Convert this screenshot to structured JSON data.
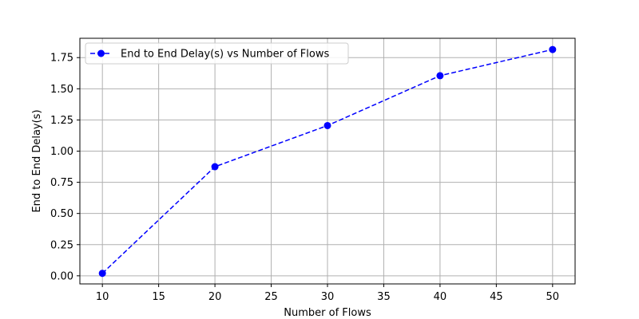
{
  "chart_data": {
    "type": "line",
    "title": "",
    "xlabel": "Number of Flows",
    "ylabel": "End to End Delay(s)",
    "xlim": [
      8,
      52
    ],
    "ylim": [
      -0.065,
      1.905
    ],
    "xticks": [
      10,
      15,
      20,
      25,
      30,
      35,
      40,
      45,
      50
    ],
    "xtick_labels": [
      "10",
      "15",
      "20",
      "25",
      "30",
      "35",
      "40",
      "45",
      "50"
    ],
    "yticks": [
      0.0,
      0.25,
      0.5,
      0.75,
      1.0,
      1.25,
      1.5,
      1.75
    ],
    "ytick_labels": [
      "0.00",
      "0.25",
      "0.50",
      "0.75",
      "1.00",
      "1.25",
      "1.50",
      "1.75"
    ],
    "grid": true,
    "legend": {
      "placement": "top-left"
    },
    "series": [
      {
        "name": "End to End Delay(s) vs Number of Flows",
        "color": "#0000ff",
        "line_style": "dashed",
        "marker": "circle",
        "x": [
          10,
          20,
          30,
          40,
          50
        ],
        "y": [
          0.02,
          0.875,
          1.205,
          1.605,
          1.815
        ]
      }
    ]
  }
}
